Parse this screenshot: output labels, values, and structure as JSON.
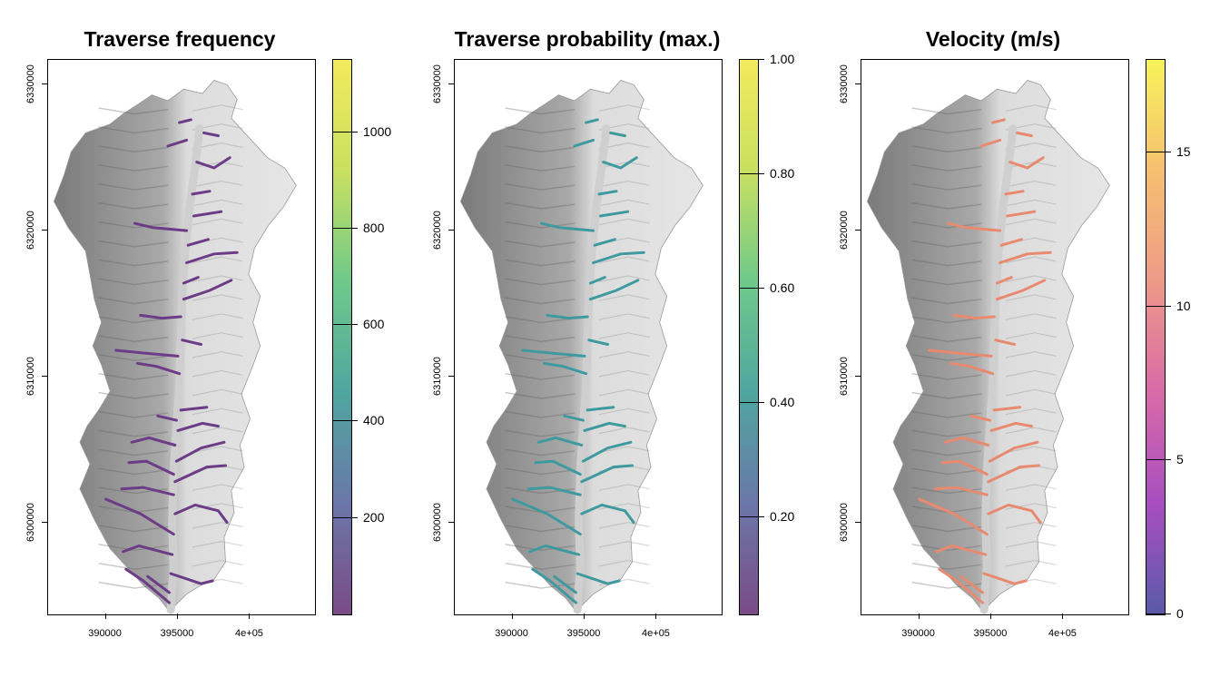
{
  "panels": [
    {
      "id": "frequency",
      "title": "Traverse frequency",
      "y_ticks": [
        "6300000",
        "6310000",
        "6320000",
        "6330000"
      ],
      "x_ticks": [
        "390000",
        "395000",
        "4e+05"
      ],
      "colorbar": {
        "labels": [
          "200",
          "400",
          "600",
          "800",
          "1000"
        ],
        "values": [
          200,
          400,
          600,
          800,
          1000
        ],
        "min": 0,
        "max": 1150,
        "colors": [
          "#7b4b86",
          "#6a77a8",
          "#4fa6a0",
          "#6fc98a",
          "#c9e060",
          "#f3ea5c"
        ],
        "overlay_color": "#6c3c86"
      }
    },
    {
      "id": "probability",
      "title": "Traverse probability (max.)",
      "y_ticks": [
        "6300000",
        "6310000",
        "6320000",
        "6330000"
      ],
      "x_ticks": [
        "390000",
        "395000",
        "4e+05"
      ],
      "colorbar": {
        "labels": [
          "0.20",
          "0.40",
          "0.60",
          "0.80",
          "1.00"
        ],
        "values": [
          0.2,
          0.4,
          0.6,
          0.8,
          1.0
        ],
        "min": 0.03,
        "max": 1.0,
        "colors": [
          "#7b4b86",
          "#6a77a8",
          "#4fa6a0",
          "#6fc98a",
          "#c9e060",
          "#f3ea5c"
        ],
        "overlay_color": "#3f9aa0"
      }
    },
    {
      "id": "velocity",
      "title": "Velocity (m/s)",
      "y_ticks": [
        "6300000",
        "6310000",
        "6320000",
        "6330000"
      ],
      "x_ticks": [
        "390000",
        "395000",
        "4e+05"
      ],
      "colorbar": {
        "labels": [
          "0",
          "5",
          "10",
          "15"
        ],
        "values": [
          0,
          5,
          10,
          15
        ],
        "min": 0,
        "max": 18,
        "colors": [
          "#5a5aa8",
          "#a84ec0",
          "#d86aa8",
          "#ee9a88",
          "#f6c070",
          "#f7f25a"
        ],
        "overlay_color": "#e88a70"
      }
    }
  ],
  "map_extent": {
    "x_min": 386000,
    "x_max": 404500,
    "y_min": 6293700,
    "y_max": 6331700
  },
  "colors": {
    "hillshade_light": "#e6e6e6",
    "hillshade_dark": "#7a7a7a",
    "valley_floor": "#cfcfcf"
  }
}
